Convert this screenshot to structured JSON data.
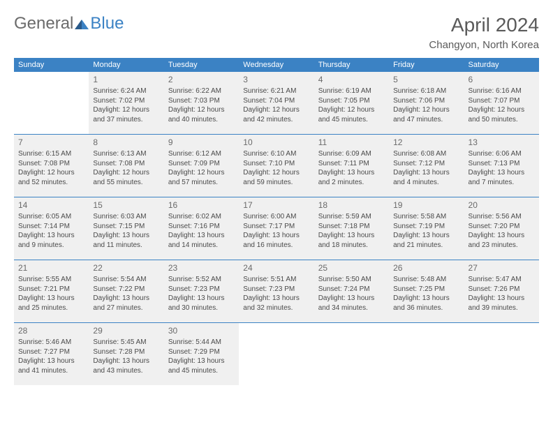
{
  "logo": {
    "text_general": "General",
    "text_blue": "Blue"
  },
  "title": "April 2024",
  "location": "Changyon, North Korea",
  "day_headers": [
    "Sunday",
    "Monday",
    "Tuesday",
    "Wednesday",
    "Thursday",
    "Friday",
    "Saturday"
  ],
  "colors": {
    "header_bg": "#3b82c4",
    "header_text": "#ffffff",
    "border": "#3b82c4",
    "shaded_bg": "#f0f0f0",
    "text": "#4a4a4a",
    "logo_gray": "#6b6b6b",
    "logo_blue": "#3b82c4"
  },
  "weeks": [
    [
      {
        "day": "",
        "sunrise": "",
        "sunset": "",
        "daylight": ""
      },
      {
        "day": "1",
        "sunrise": "Sunrise: 6:24 AM",
        "sunset": "Sunset: 7:02 PM",
        "daylight": "Daylight: 12 hours and 37 minutes."
      },
      {
        "day": "2",
        "sunrise": "Sunrise: 6:22 AM",
        "sunset": "Sunset: 7:03 PM",
        "daylight": "Daylight: 12 hours and 40 minutes."
      },
      {
        "day": "3",
        "sunrise": "Sunrise: 6:21 AM",
        "sunset": "Sunset: 7:04 PM",
        "daylight": "Daylight: 12 hours and 42 minutes."
      },
      {
        "day": "4",
        "sunrise": "Sunrise: 6:19 AM",
        "sunset": "Sunset: 7:05 PM",
        "daylight": "Daylight: 12 hours and 45 minutes."
      },
      {
        "day": "5",
        "sunrise": "Sunrise: 6:18 AM",
        "sunset": "Sunset: 7:06 PM",
        "daylight": "Daylight: 12 hours and 47 minutes."
      },
      {
        "day": "6",
        "sunrise": "Sunrise: 6:16 AM",
        "sunset": "Sunset: 7:07 PM",
        "daylight": "Daylight: 12 hours and 50 minutes."
      }
    ],
    [
      {
        "day": "7",
        "sunrise": "Sunrise: 6:15 AM",
        "sunset": "Sunset: 7:08 PM",
        "daylight": "Daylight: 12 hours and 52 minutes."
      },
      {
        "day": "8",
        "sunrise": "Sunrise: 6:13 AM",
        "sunset": "Sunset: 7:08 PM",
        "daylight": "Daylight: 12 hours and 55 minutes."
      },
      {
        "day": "9",
        "sunrise": "Sunrise: 6:12 AM",
        "sunset": "Sunset: 7:09 PM",
        "daylight": "Daylight: 12 hours and 57 minutes."
      },
      {
        "day": "10",
        "sunrise": "Sunrise: 6:10 AM",
        "sunset": "Sunset: 7:10 PM",
        "daylight": "Daylight: 12 hours and 59 minutes."
      },
      {
        "day": "11",
        "sunrise": "Sunrise: 6:09 AM",
        "sunset": "Sunset: 7:11 PM",
        "daylight": "Daylight: 13 hours and 2 minutes."
      },
      {
        "day": "12",
        "sunrise": "Sunrise: 6:08 AM",
        "sunset": "Sunset: 7:12 PM",
        "daylight": "Daylight: 13 hours and 4 minutes."
      },
      {
        "day": "13",
        "sunrise": "Sunrise: 6:06 AM",
        "sunset": "Sunset: 7:13 PM",
        "daylight": "Daylight: 13 hours and 7 minutes."
      }
    ],
    [
      {
        "day": "14",
        "sunrise": "Sunrise: 6:05 AM",
        "sunset": "Sunset: 7:14 PM",
        "daylight": "Daylight: 13 hours and 9 minutes."
      },
      {
        "day": "15",
        "sunrise": "Sunrise: 6:03 AM",
        "sunset": "Sunset: 7:15 PM",
        "daylight": "Daylight: 13 hours and 11 minutes."
      },
      {
        "day": "16",
        "sunrise": "Sunrise: 6:02 AM",
        "sunset": "Sunset: 7:16 PM",
        "daylight": "Daylight: 13 hours and 14 minutes."
      },
      {
        "day": "17",
        "sunrise": "Sunrise: 6:00 AM",
        "sunset": "Sunset: 7:17 PM",
        "daylight": "Daylight: 13 hours and 16 minutes."
      },
      {
        "day": "18",
        "sunrise": "Sunrise: 5:59 AM",
        "sunset": "Sunset: 7:18 PM",
        "daylight": "Daylight: 13 hours and 18 minutes."
      },
      {
        "day": "19",
        "sunrise": "Sunrise: 5:58 AM",
        "sunset": "Sunset: 7:19 PM",
        "daylight": "Daylight: 13 hours and 21 minutes."
      },
      {
        "day": "20",
        "sunrise": "Sunrise: 5:56 AM",
        "sunset": "Sunset: 7:20 PM",
        "daylight": "Daylight: 13 hours and 23 minutes."
      }
    ],
    [
      {
        "day": "21",
        "sunrise": "Sunrise: 5:55 AM",
        "sunset": "Sunset: 7:21 PM",
        "daylight": "Daylight: 13 hours and 25 minutes."
      },
      {
        "day": "22",
        "sunrise": "Sunrise: 5:54 AM",
        "sunset": "Sunset: 7:22 PM",
        "daylight": "Daylight: 13 hours and 27 minutes."
      },
      {
        "day": "23",
        "sunrise": "Sunrise: 5:52 AM",
        "sunset": "Sunset: 7:23 PM",
        "daylight": "Daylight: 13 hours and 30 minutes."
      },
      {
        "day": "24",
        "sunrise": "Sunrise: 5:51 AM",
        "sunset": "Sunset: 7:23 PM",
        "daylight": "Daylight: 13 hours and 32 minutes."
      },
      {
        "day": "25",
        "sunrise": "Sunrise: 5:50 AM",
        "sunset": "Sunset: 7:24 PM",
        "daylight": "Daylight: 13 hours and 34 minutes."
      },
      {
        "day": "26",
        "sunrise": "Sunrise: 5:48 AM",
        "sunset": "Sunset: 7:25 PM",
        "daylight": "Daylight: 13 hours and 36 minutes."
      },
      {
        "day": "27",
        "sunrise": "Sunrise: 5:47 AM",
        "sunset": "Sunset: 7:26 PM",
        "daylight": "Daylight: 13 hours and 39 minutes."
      }
    ],
    [
      {
        "day": "28",
        "sunrise": "Sunrise: 5:46 AM",
        "sunset": "Sunset: 7:27 PM",
        "daylight": "Daylight: 13 hours and 41 minutes."
      },
      {
        "day": "29",
        "sunrise": "Sunrise: 5:45 AM",
        "sunset": "Sunset: 7:28 PM",
        "daylight": "Daylight: 13 hours and 43 minutes."
      },
      {
        "day": "30",
        "sunrise": "Sunrise: 5:44 AM",
        "sunset": "Sunset: 7:29 PM",
        "daylight": "Daylight: 13 hours and 45 minutes."
      },
      {
        "day": "",
        "sunrise": "",
        "sunset": "",
        "daylight": ""
      },
      {
        "day": "",
        "sunrise": "",
        "sunset": "",
        "daylight": ""
      },
      {
        "day": "",
        "sunrise": "",
        "sunset": "",
        "daylight": ""
      },
      {
        "day": "",
        "sunrise": "",
        "sunset": "",
        "daylight": ""
      }
    ]
  ]
}
